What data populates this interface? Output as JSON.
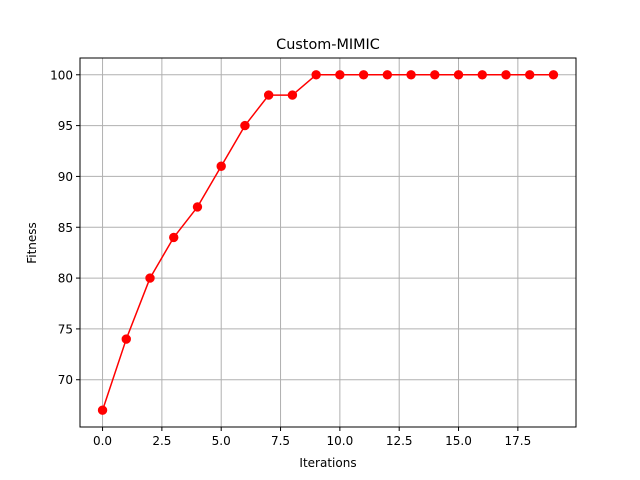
{
  "chart_data": {
    "type": "line",
    "title": "Custom-MIMIC",
    "xlabel": "Iterations",
    "ylabel": "Fitness",
    "x": [
      0,
      1,
      2,
      3,
      4,
      5,
      6,
      7,
      8,
      9,
      10,
      11,
      12,
      13,
      14,
      15,
      16,
      17,
      18,
      19
    ],
    "series": [
      {
        "values": [
          67,
          74,
          80,
          84,
          87,
          91,
          95,
          98,
          98,
          100,
          100,
          100,
          100,
          100,
          100,
          100,
          100,
          100,
          100,
          100
        ],
        "color": "#ff0000",
        "marker": "circle"
      }
    ],
    "xlim": [
      -0.95,
      19.95
    ],
    "ylim": [
      65.35,
      101.65
    ],
    "xticks": [
      0,
      2.5,
      5,
      7.5,
      10,
      12.5,
      15,
      17.5
    ],
    "xtick_labels": [
      "0.0",
      "2.5",
      "5.0",
      "7.5",
      "10.0",
      "12.5",
      "15.0",
      "17.5"
    ],
    "yticks": [
      70,
      75,
      80,
      85,
      90,
      95,
      100
    ],
    "ytick_labels": [
      "70",
      "75",
      "80",
      "85",
      "90",
      "95",
      "100"
    ],
    "grid": true,
    "grid_color": "#b0b0b0"
  }
}
